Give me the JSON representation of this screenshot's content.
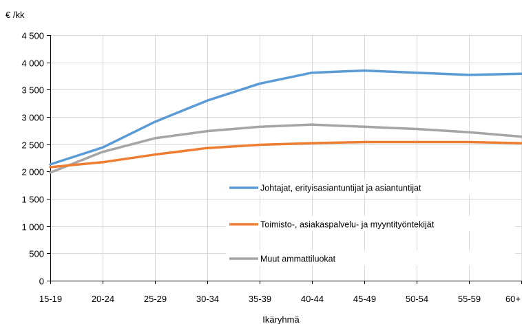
{
  "chart_data": {
    "type": "line",
    "title": "",
    "ylabel": "€ /kk",
    "xlabel": "Ikäryhmä",
    "categories": [
      "15-19",
      "20-24",
      "25-29",
      "30-34",
      "35-39",
      "40-44",
      "45-49",
      "50-54",
      "55-59",
      "60+"
    ],
    "ylim": [
      0,
      4500
    ],
    "yticks": [
      0,
      500,
      1000,
      1500,
      2000,
      2500,
      3000,
      3500,
      4000,
      4500
    ],
    "ytick_labels": [
      "0",
      "500",
      "1 000",
      "1 500",
      "2 000",
      "2 500",
      "3 000",
      "3 500",
      "4 000",
      "4 500"
    ],
    "grid": true,
    "legend_position": "inside-right",
    "series": [
      {
        "name": "Johtajat, erityisasiantuntijat ja asiantuntijat",
        "color": "#5b9bd5",
        "values": [
          2130,
          2440,
          2910,
          3300,
          3610,
          3810,
          3850,
          3810,
          3770,
          3790
        ]
      },
      {
        "name": "Toimisto-, asiakaspalvelu- ja myyntityöntekijät",
        "color": "#ed7d31",
        "values": [
          2080,
          2170,
          2310,
          2430,
          2490,
          2520,
          2540,
          2540,
          2540,
          2520
        ]
      },
      {
        "name": "Muut ammattiluokat",
        "color": "#a5a5a5",
        "values": [
          1980,
          2360,
          2610,
          2740,
          2820,
          2860,
          2820,
          2780,
          2720,
          2640
        ]
      }
    ]
  }
}
